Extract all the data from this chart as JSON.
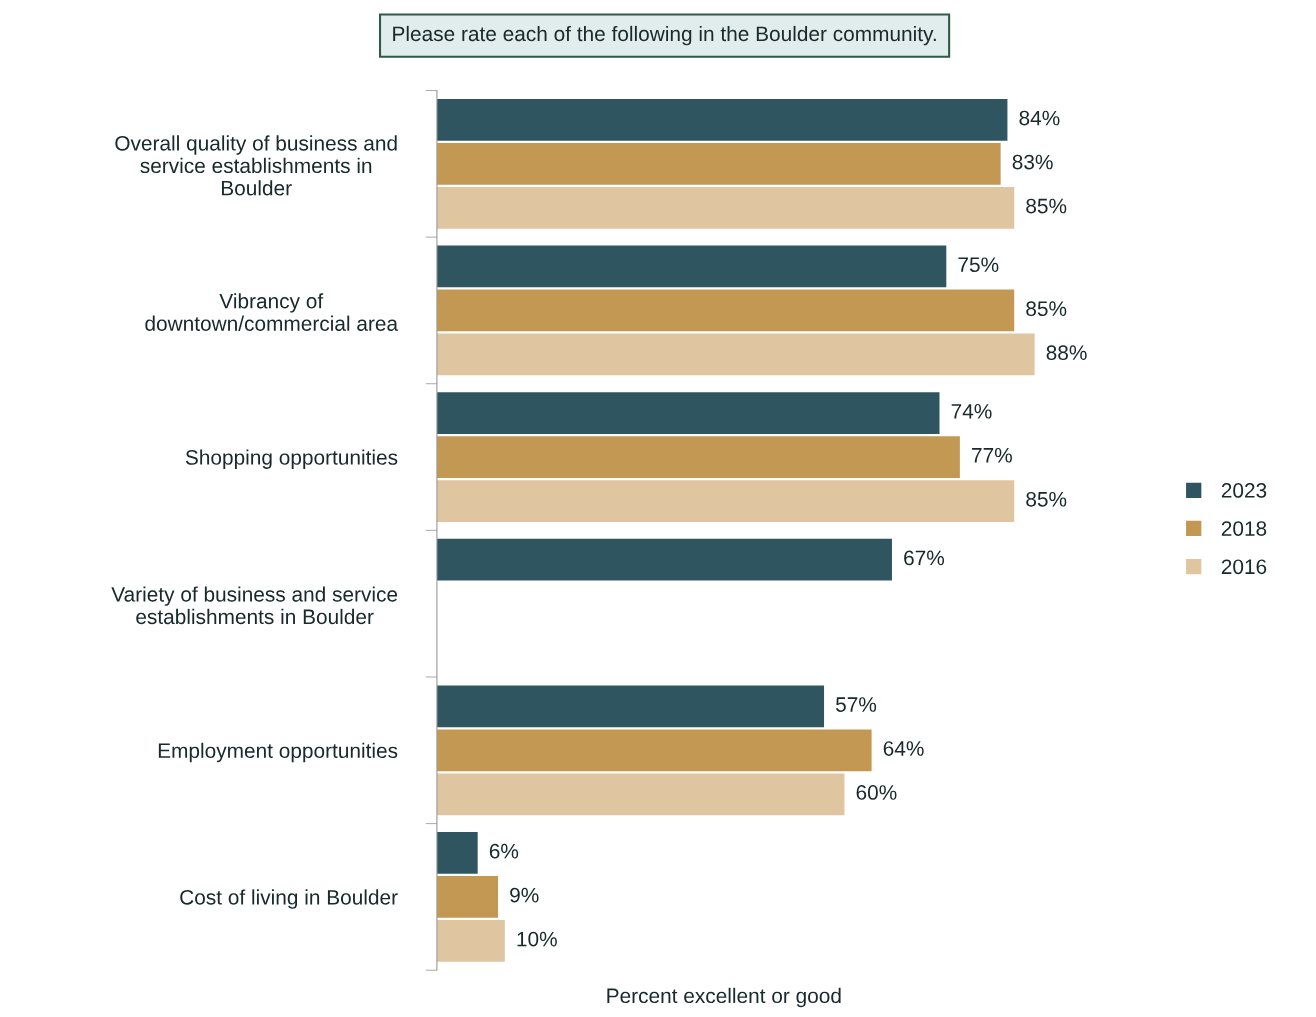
{
  "chart_data": {
    "type": "bar",
    "orientation": "horizontal",
    "title": "Please rate each of the following in the Boulder community.",
    "xlabel": "Percent excellent or good",
    "categories": [
      "Overall quality of business and\nservice establishments in\nBoulder",
      "Vibrancy of\ndowntown/commercial area",
      "Shopping opportunities",
      "Variety of business and service\nestablishments in Boulder",
      "Employment opportunities",
      "Cost of living in Boulder"
    ],
    "series": [
      {
        "name": "2023",
        "color": "#2f5660",
        "values": [
          84,
          75,
          74,
          67,
          57,
          6
        ],
        "value_labels": [
          "84%",
          "75%",
          "74%",
          "67%",
          "57%",
          "6%"
        ]
      },
      {
        "name": "2018",
        "color": "#c29853",
        "values": [
          83,
          85,
          77,
          null,
          64,
          9
        ],
        "value_labels": [
          "83%",
          "85%",
          "77%",
          null,
          "64%",
          "9%"
        ]
      },
      {
        "name": "2016",
        "color": "#dfc6a0",
        "values": [
          85,
          88,
          85,
          null,
          60,
          10
        ],
        "value_labels": [
          "85%",
          "88%",
          "85%",
          null,
          "60%",
          "10%"
        ]
      }
    ],
    "legend": "right",
    "grid": false
  }
}
